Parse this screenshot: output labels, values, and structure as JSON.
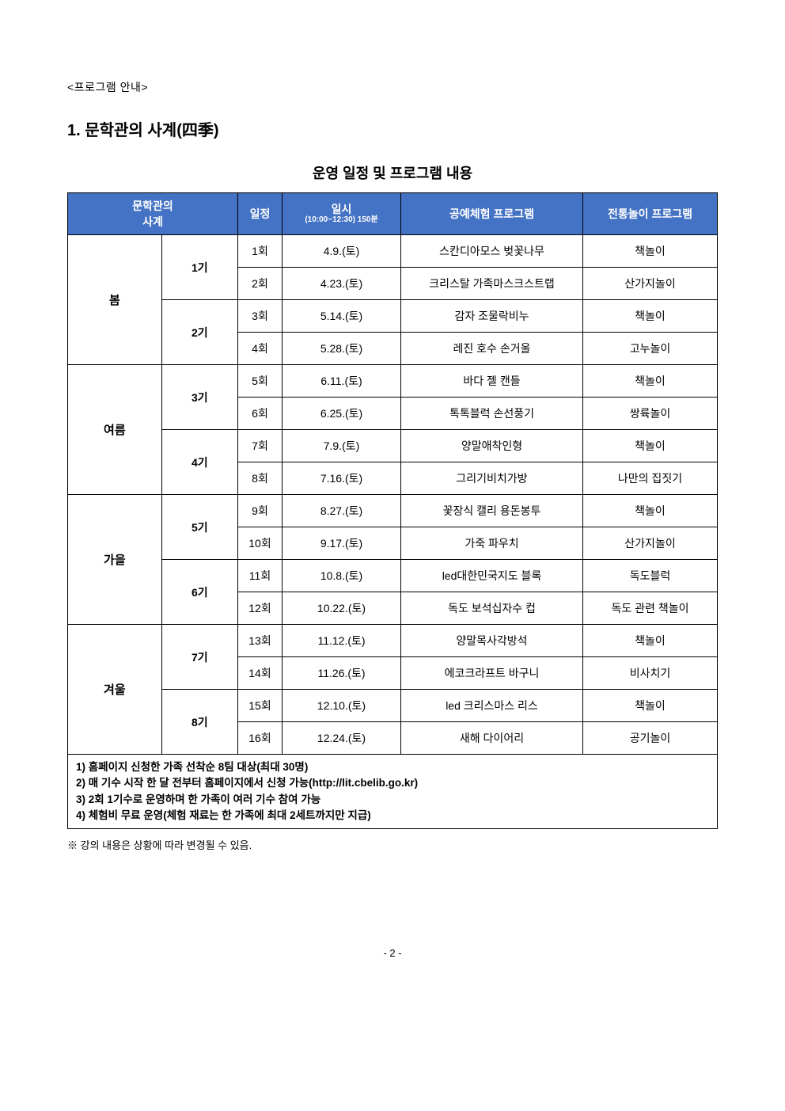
{
  "preheading": "<프로그램 안내>",
  "heading": "1. 문학관의 사계(四季)",
  "subheading": "운영 일정 및 프로그램 내용",
  "table": {
    "headers": {
      "season": "문학관의\n사계",
      "schedule": "일정",
      "date_main": "일시",
      "date_sub": "(10:00~12:30) 150분",
      "craft": "공예체험 프로그램",
      "traditional": "전통놀이 프로그램"
    },
    "seasons": [
      {
        "name": "봄",
        "periods": [
          {
            "name": "1기",
            "rows": [
              {
                "session": "1회",
                "date": "4.9.(토)",
                "craft": "스칸디아모스 벚꽃나무",
                "trad": "책놀이"
              },
              {
                "session": "2회",
                "date": "4.23.(토)",
                "craft": "크리스탈 가족마스크스트랩",
                "trad": "산가지놀이"
              }
            ]
          },
          {
            "name": "2기",
            "rows": [
              {
                "session": "3회",
                "date": "5.14.(토)",
                "craft": "감자 조물락비누",
                "trad": "책놀이"
              },
              {
                "session": "4회",
                "date": "5.28.(토)",
                "craft": "레진 호수 손거울",
                "trad": "고누놀이"
              }
            ]
          }
        ]
      },
      {
        "name": "여름",
        "periods": [
          {
            "name": "3기",
            "rows": [
              {
                "session": "5회",
                "date": "6.11.(토)",
                "craft": "바다 젤 캔들",
                "trad": "책놀이"
              },
              {
                "session": "6회",
                "date": "6.25.(토)",
                "craft": "톡톡블럭 손선풍기",
                "trad": "쌍륙놀이"
              }
            ]
          },
          {
            "name": "4기",
            "rows": [
              {
                "session": "7회",
                "date": "7.9.(토)",
                "craft": "양말애착인형",
                "trad": "책놀이"
              },
              {
                "session": "8회",
                "date": "7.16.(토)",
                "craft": "그리기비치가방",
                "trad": "나만의 집짓기"
              }
            ]
          }
        ]
      },
      {
        "name": "가을",
        "periods": [
          {
            "name": "5기",
            "rows": [
              {
                "session": "9회",
                "date": "8.27.(토)",
                "craft": "꽃장식 캘리 용돈봉투",
                "trad": "책놀이"
              },
              {
                "session": "10회",
                "date": "9.17.(토)",
                "craft": "가죽 파우치",
                "trad": "산가지놀이"
              }
            ]
          },
          {
            "name": "6기",
            "rows": [
              {
                "session": "11회",
                "date": "10.8.(토)",
                "craft": "led대한민국지도 블록",
                "trad": "독도블럭"
              },
              {
                "session": "12회",
                "date": "10.22.(토)",
                "craft": "독도 보석십자수  컵",
                "trad": "독도 관련 책놀이"
              }
            ]
          }
        ]
      },
      {
        "name": "겨울",
        "periods": [
          {
            "name": "7기",
            "rows": [
              {
                "session": "13회",
                "date": "11.12.(토)",
                "craft": "양말목사각방석",
                "trad": "책놀이"
              },
              {
                "session": "14회",
                "date": "11.26.(토)",
                "craft": "에코크라프트 바구니",
                "trad": "비사치기"
              }
            ]
          },
          {
            "name": "8기",
            "rows": [
              {
                "session": "15회",
                "date": "12.10.(토)",
                "craft": "led 크리스마스 리스",
                "trad": "책놀이"
              },
              {
                "session": "16회",
                "date": "12.24.(토)",
                "craft": "새해 다이어리",
                "trad": "공기놀이"
              }
            ]
          }
        ]
      }
    ],
    "notes": [
      "1) 홈페이지 신청한 가족 선착순 8팀 대상(최대 30명)",
      "2) 매 기수 시작 한 달 전부터 홈페이지에서 신청 가능(http://lit.cbelib.go.kr)",
      "3) 2회 1기수로 운영하며 한 가족이 여러 기수 참여 가능",
      "4) 체험비 무료 운영(체험 재료는 한 가족에 최대 2세트까지만 지급)"
    ]
  },
  "footnote": "※ 강의 내용은 상황에 따라 변경될 수 있음.",
  "page_number": "- 2 -"
}
